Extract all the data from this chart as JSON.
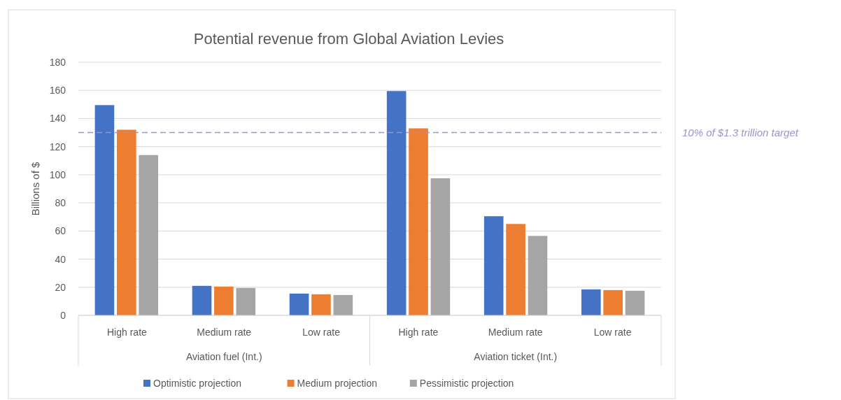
{
  "chart_data": {
    "type": "bar",
    "title": "Potential revenue from Global Aviation Levies",
    "ylabel": "Billions of $",
    "categories": [
      "High rate",
      "Medium rate",
      "Low rate",
      "High rate",
      "Medium rate",
      "Low rate"
    ],
    "series": [
      {
        "name": "Optimistic projection",
        "color": "#4472c4",
        "values": [
          149.5,
          21,
          15.5,
          159.5,
          70.5,
          18.5
        ]
      },
      {
        "name": "Medium projection",
        "color": "#ed7d31",
        "values": [
          132,
          20.5,
          15,
          133,
          65,
          18
        ]
      },
      {
        "name": "Pessimistic projection",
        "color": "#a5a5a5",
        "values": [
          114,
          19.5,
          14.5,
          97.5,
          56.5,
          17.5
        ]
      }
    ],
    "annotations": [
      "Aviation fuel (Int.)",
      "Aviation ticket (Int.)"
    ],
    "ylim": [
      0,
      180
    ],
    "yticks": [
      0,
      20,
      40,
      60,
      80,
      100,
      120,
      140,
      160,
      180
    ],
    "grid": "y",
    "legend": "bottom",
    "ref_lines": [
      {
        "axis": "y",
        "value": 130,
        "label": "10% of $1.3 trillion target",
        "color": "#9e94c8",
        "line_style": "dashed"
      }
    ]
  }
}
